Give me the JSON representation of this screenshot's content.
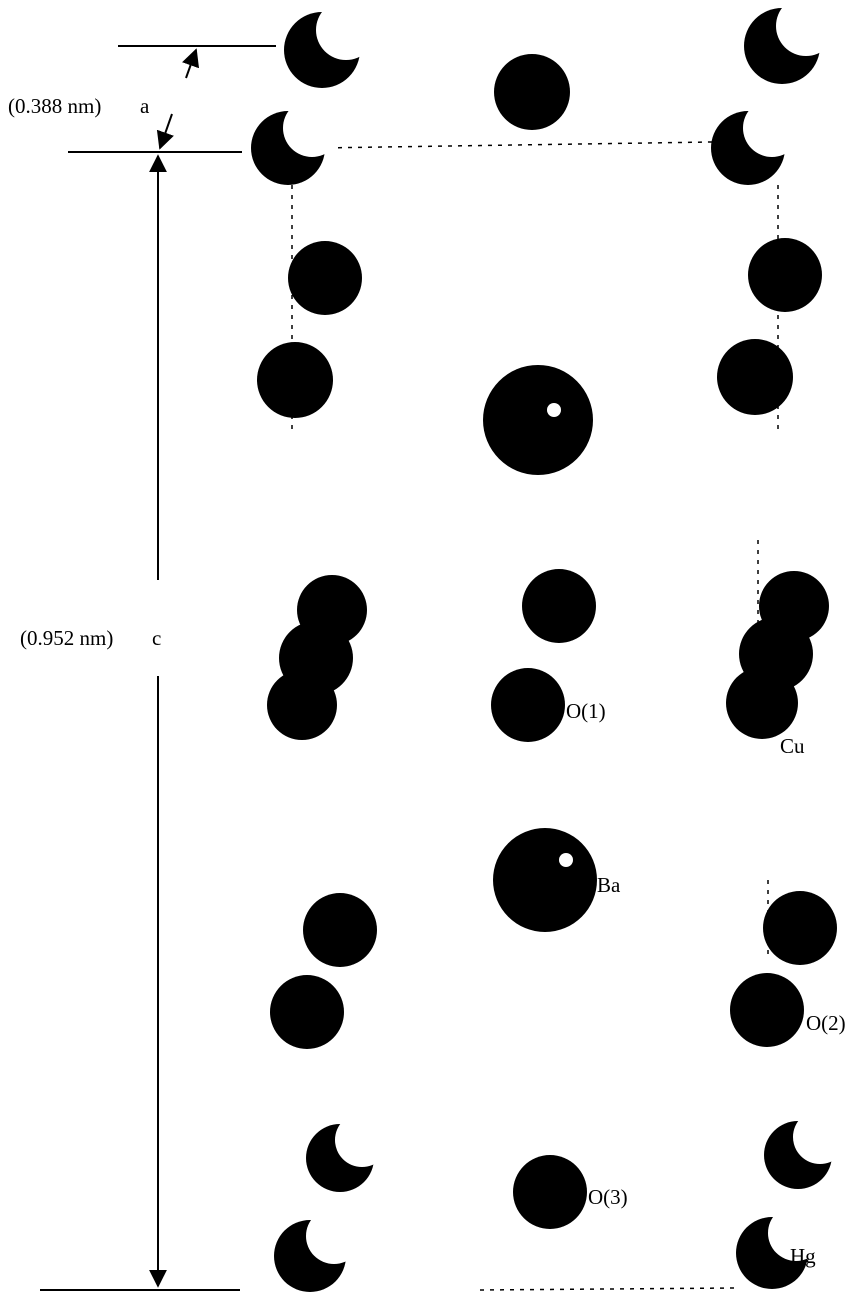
{
  "dimensions": [
    {
      "length": "(0.388 nm)",
      "name": "a"
    },
    {
      "length": "(0.952 nm)",
      "name": "c"
    }
  ],
  "atoms": [
    "O(1)",
    "Cu",
    "Ba",
    "O(2)",
    "O(3)",
    "Hg"
  ]
}
